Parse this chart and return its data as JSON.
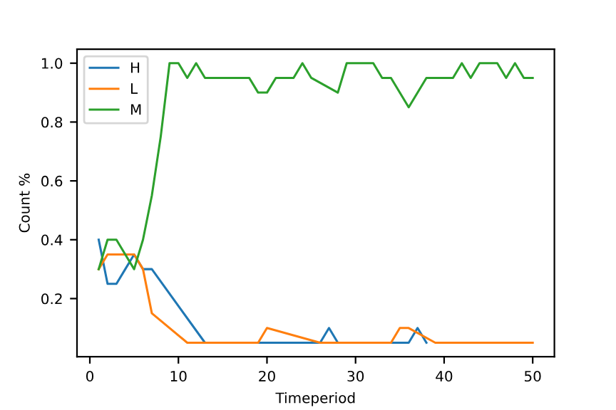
{
  "chart_data": {
    "type": "line",
    "xlabel": "Timeperiod",
    "ylabel": "Count %",
    "xlim": [
      -1.45,
      52.45
    ],
    "ylim": [
      0.0025,
      1.0475
    ],
    "xticks": [
      0,
      10,
      20,
      30,
      40,
      50
    ],
    "yticks": [
      {
        "value": 0.2,
        "label": "0.2"
      },
      {
        "value": 0.4,
        "label": "0.4"
      },
      {
        "value": 0.6,
        "label": "0.6"
      },
      {
        "value": 0.8,
        "label": "0.8"
      },
      {
        "value": 1.0,
        "label": "1.0"
      }
    ],
    "legend": "top left",
    "grid": false,
    "series": [
      {
        "name": "H",
        "color": "#1f77b4",
        "x": [
          1,
          2,
          3,
          4,
          5,
          6,
          7,
          13,
          26,
          27,
          28,
          36,
          37,
          38
        ],
        "values": [
          0.4,
          0.25,
          0.25,
          0.3,
          0.35,
          0.3,
          0.3,
          0.05,
          0.05,
          0.1,
          0.05,
          0.05,
          0.1,
          0.05
        ]
      },
      {
        "name": "L",
        "color": "#ff7f0e",
        "x": [
          1,
          2,
          5,
          6,
          7,
          11,
          19,
          20,
          26,
          34,
          35,
          36,
          39,
          50
        ],
        "values": [
          0.3,
          0.35,
          0.35,
          0.3,
          0.15,
          0.05,
          0.05,
          0.1,
          0.05,
          0.05,
          0.1,
          0.1,
          0.05,
          0.05
        ]
      },
      {
        "name": "M",
        "color": "#2ca02c",
        "x": [
          1,
          2,
          3,
          4,
          5,
          6,
          7,
          8,
          9,
          10,
          11,
          12,
          13,
          18,
          19,
          20,
          21,
          23,
          24,
          25,
          28,
          29,
          32,
          33,
          34,
          36,
          38,
          41,
          42,
          43,
          44,
          46,
          47,
          48,
          49,
          50
        ],
        "values": [
          0.3,
          0.4,
          0.4,
          0.35,
          0.3,
          0.4,
          0.55,
          0.75,
          1.0,
          1.0,
          0.95,
          1.0,
          0.95,
          0.95,
          0.9,
          0.9,
          0.95,
          0.95,
          1.0,
          0.95,
          0.9,
          1.0,
          1.0,
          0.95,
          0.95,
          0.85,
          0.95,
          0.95,
          1.0,
          0.95,
          1.0,
          1.0,
          0.95,
          1.0,
          0.95,
          0.95
        ]
      }
    ]
  }
}
